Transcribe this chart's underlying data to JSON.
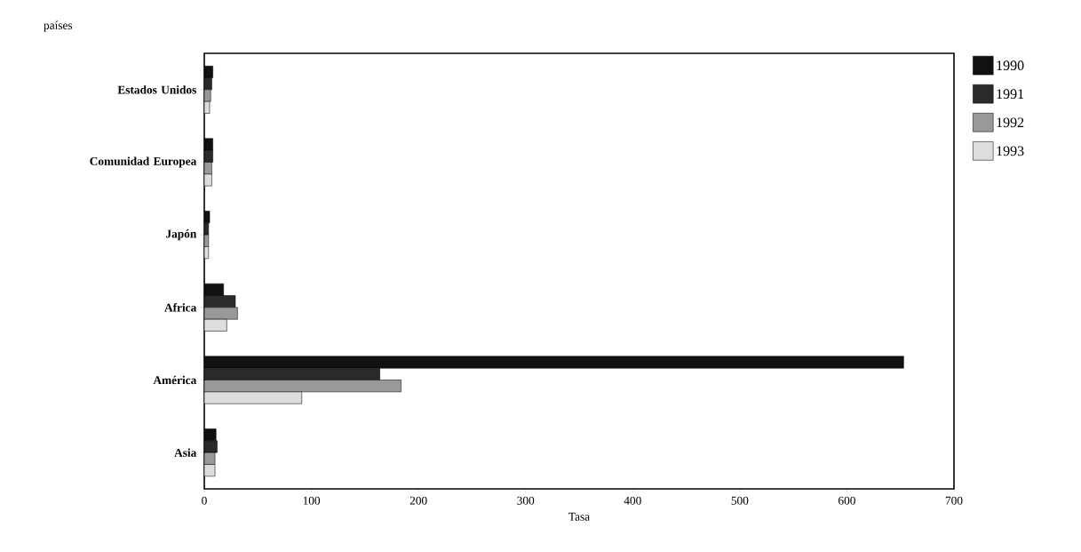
{
  "chart_data": {
    "type": "bar",
    "orientation": "horizontal",
    "ylabel": "países",
    "xlabel": "Tasa",
    "categories": [
      "Estados Unidos",
      "Comunidad Europea",
      "Japón",
      "Africa",
      "América",
      "Asia"
    ],
    "series": [
      {
        "name": "1990",
        "color": "#111111",
        "values": [
          8,
          8,
          5,
          18,
          653,
          11
        ]
      },
      {
        "name": "1991",
        "color": "#2a2a2a",
        "values": [
          7,
          8,
          4,
          29,
          164,
          12
        ]
      },
      {
        "name": "1992",
        "color": "#999999",
        "values": [
          6,
          7,
          4,
          31,
          184,
          10
        ]
      },
      {
        "name": "1993",
        "color": "#dddddd",
        "values": [
          5,
          7,
          4,
          21,
          91,
          10
        ]
      }
    ],
    "xlim": [
      0,
      700
    ],
    "xticks": [
      0,
      100,
      200,
      300,
      400,
      500,
      600,
      700
    ],
    "grid": false,
    "legend": "top right"
  }
}
